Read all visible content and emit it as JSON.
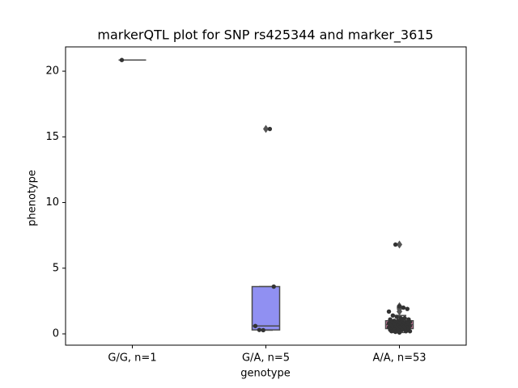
{
  "chart_data": {
    "type": "box",
    "title": "markerQTL plot for SNP rs425344 and marker_3615",
    "xlabel": "genotype",
    "ylabel": "phenotype",
    "categories": [
      "G/G, n=1",
      "G/A, n=5",
      "A/A, n=53"
    ],
    "ylim": [
      -0.86,
      21.85
    ],
    "yticks": [
      0,
      5,
      10,
      15,
      20
    ],
    "boxes": [
      {
        "whislo": 20.85,
        "q1": 20.85,
        "med": 20.85,
        "q3": 20.85,
        "whishi": 20.85,
        "fliers": [],
        "color": "#6f6fe0"
      },
      {
        "whislo": 0.28,
        "q1": 0.3,
        "med": 0.6,
        "q3": 3.6,
        "whishi": 3.6,
        "fliers": [
          15.6
        ],
        "color": "#9090f2"
      },
      {
        "whislo": 0.1,
        "q1": 0.4,
        "med": 0.7,
        "q3": 1.0,
        "whishi": 1.4,
        "fliers": [
          6.8,
          2.1,
          2.0,
          1.9,
          1.7
        ],
        "color": "#e07fa8"
      }
    ],
    "points": [
      [
        20.85
      ],
      [
        15.6,
        3.6,
        0.6,
        0.3,
        0.28
      ],
      [
        6.8,
        2.1,
        2.0,
        1.9,
        1.7,
        1.4,
        1.3,
        1.2,
        1.2,
        1.1,
        1.1,
        1.0,
        1.0,
        1.0,
        0.9,
        0.9,
        0.9,
        0.9,
        0.8,
        0.8,
        0.8,
        0.8,
        0.8,
        0.7,
        0.7,
        0.7,
        0.7,
        0.7,
        0.7,
        0.6,
        0.6,
        0.6,
        0.6,
        0.6,
        0.5,
        0.5,
        0.5,
        0.5,
        0.5,
        0.4,
        0.4,
        0.4,
        0.4,
        0.4,
        0.3,
        0.3,
        0.3,
        0.3,
        0.2,
        0.2,
        0.2,
        0.15,
        0.1
      ]
    ]
  }
}
